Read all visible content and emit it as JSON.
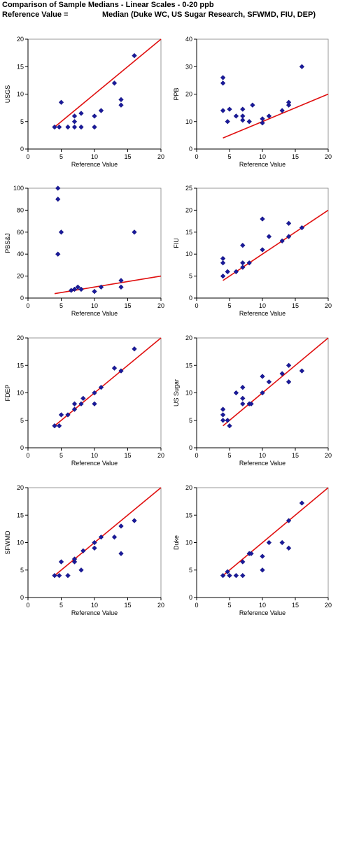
{
  "header": {
    "title": "Comparison of Sample Medians - Linear Scales - 0-20 ppb",
    "ref_label": "Reference Value =",
    "ref_value": "Median (Duke WC, US Sugar Research, SFWMD, FIU, DEP)"
  },
  "colors": {
    "points": "#1a1a9a",
    "line": "#e01010",
    "axis": "#000000"
  },
  "chart_data": [
    {
      "type": "scatter",
      "ylabel": "USGS",
      "xlabel": "Reference Value",
      "xlim": [
        0,
        20
      ],
      "ylim": [
        0,
        20
      ],
      "xticks": [
        0,
        5,
        10,
        15,
        20
      ],
      "yticks": [
        0,
        5,
        10,
        15,
        20
      ],
      "points": [
        [
          4,
          4
        ],
        [
          4.7,
          4
        ],
        [
          5,
          8.5
        ],
        [
          6,
          4
        ],
        [
          7,
          4
        ],
        [
          7,
          5
        ],
        [
          7,
          6
        ],
        [
          8,
          4
        ],
        [
          8,
          6.5
        ],
        [
          10,
          4
        ],
        [
          10,
          6
        ],
        [
          11,
          7
        ],
        [
          13,
          12
        ],
        [
          14,
          8
        ],
        [
          14,
          9
        ],
        [
          16,
          17
        ]
      ],
      "line": [
        [
          4,
          4
        ],
        [
          20,
          20
        ]
      ]
    },
    {
      "type": "scatter",
      "ylabel": "PPB",
      "xlabel": "Reference Value",
      "xlim": [
        0,
        20
      ],
      "ylim": [
        0,
        40
      ],
      "xticks": [
        0,
        5,
        10,
        15,
        20
      ],
      "yticks": [
        0,
        10,
        20,
        30,
        40
      ],
      "points": [
        [
          4,
          14
        ],
        [
          4,
          24
        ],
        [
          4,
          26
        ],
        [
          4.7,
          10
        ],
        [
          5,
          14.5
        ],
        [
          6,
          12
        ],
        [
          7,
          12
        ],
        [
          7,
          14.5
        ],
        [
          7,
          10.5
        ],
        [
          8,
          10
        ],
        [
          8.5,
          16
        ],
        [
          10,
          9.5
        ],
        [
          10,
          11
        ],
        [
          11,
          12
        ],
        [
          13,
          14
        ],
        [
          14,
          16
        ],
        [
          14,
          17
        ],
        [
          16,
          30
        ]
      ],
      "line": [
        [
          4,
          4
        ],
        [
          20,
          20
        ]
      ]
    },
    {
      "type": "scatter",
      "ylabel": "PBS&J",
      "xlabel": "Reference Value",
      "xlim": [
        0,
        20
      ],
      "ylim": [
        0,
        100
      ],
      "xticks": [
        0,
        5,
        10,
        15,
        20
      ],
      "yticks": [
        0,
        20,
        40,
        60,
        80,
        100
      ],
      "points": [
        [
          4.5,
          100
        ],
        [
          4.5,
          90
        ],
        [
          4.5,
          40
        ],
        [
          5,
          60
        ],
        [
          6.5,
          7
        ],
        [
          7,
          8
        ],
        [
          7.5,
          10
        ],
        [
          8,
          8
        ],
        [
          10,
          6
        ],
        [
          11,
          10
        ],
        [
          14,
          10
        ],
        [
          14,
          16
        ],
        [
          16,
          60
        ]
      ],
      "line": [
        [
          4,
          4
        ],
        [
          20,
          20
        ]
      ]
    },
    {
      "type": "scatter",
      "ylabel": "FIU",
      "xlabel": "Reference Value",
      "xlim": [
        0,
        20
      ],
      "ylim": [
        0,
        25
      ],
      "xticks": [
        0,
        5,
        10,
        15,
        20
      ],
      "yticks": [
        0,
        5,
        10,
        15,
        20,
        25
      ],
      "points": [
        [
          4,
          5
        ],
        [
          4,
          8
        ],
        [
          4,
          9
        ],
        [
          4.7,
          6
        ],
        [
          6,
          6
        ],
        [
          7,
          7
        ],
        [
          7,
          8
        ],
        [
          7,
          12
        ],
        [
          8,
          8
        ],
        [
          10,
          11
        ],
        [
          10,
          18
        ],
        [
          11,
          14
        ],
        [
          13,
          13
        ],
        [
          14,
          14
        ],
        [
          14,
          17
        ],
        [
          16,
          16
        ]
      ],
      "line": [
        [
          4,
          4
        ],
        [
          20,
          20
        ]
      ]
    },
    {
      "type": "scatter",
      "ylabel": "FDEP",
      "xlabel": "Reference Value",
      "xlim": [
        0,
        20
      ],
      "ylim": [
        0,
        20
      ],
      "xticks": [
        0,
        5,
        10,
        15,
        20
      ],
      "yticks": [
        0,
        5,
        10,
        15,
        20
      ],
      "points": [
        [
          4,
          4
        ],
        [
          4.7,
          4
        ],
        [
          5,
          6
        ],
        [
          6,
          6
        ],
        [
          7,
          7
        ],
        [
          7,
          8
        ],
        [
          8,
          8
        ],
        [
          8.3,
          9
        ],
        [
          10,
          8
        ],
        [
          10,
          10
        ],
        [
          11,
          11
        ],
        [
          13,
          14.5
        ],
        [
          14,
          14
        ],
        [
          16,
          18
        ]
      ],
      "line": [
        [
          4,
          4
        ],
        [
          20,
          20
        ]
      ]
    },
    {
      "type": "scatter",
      "ylabel": "US Sugar",
      "xlabel": "Reference Value",
      "xlim": [
        0,
        20
      ],
      "ylim": [
        0,
        20
      ],
      "xticks": [
        0,
        5,
        10,
        15,
        20
      ],
      "yticks": [
        0,
        5,
        10,
        15,
        20
      ],
      "points": [
        [
          4,
          5
        ],
        [
          4,
          6
        ],
        [
          4,
          7
        ],
        [
          4.7,
          5
        ],
        [
          5,
          4
        ],
        [
          6,
          10
        ],
        [
          7,
          8
        ],
        [
          7,
          9
        ],
        [
          7,
          11
        ],
        [
          8,
          8
        ],
        [
          8.3,
          8
        ],
        [
          10,
          10
        ],
        [
          10,
          13
        ],
        [
          11,
          12
        ],
        [
          13,
          13.5
        ],
        [
          14,
          12
        ],
        [
          14,
          15
        ],
        [
          16,
          14
        ]
      ],
      "line": [
        [
          4,
          4
        ],
        [
          20,
          20
        ]
      ]
    },
    {
      "type": "scatter",
      "ylabel": "SFWMD",
      "xlabel": "Reference Value",
      "xlim": [
        0,
        20
      ],
      "ylim": [
        0,
        20
      ],
      "xticks": [
        0,
        5,
        10,
        15,
        20
      ],
      "yticks": [
        0,
        5,
        10,
        15,
        20
      ],
      "points": [
        [
          4,
          4
        ],
        [
          4.7,
          4
        ],
        [
          5,
          6.5
        ],
        [
          6,
          4
        ],
        [
          7,
          6.5
        ],
        [
          7,
          7
        ],
        [
          8,
          5
        ],
        [
          8.3,
          8.5
        ],
        [
          10,
          9
        ],
        [
          10,
          10
        ],
        [
          11,
          11
        ],
        [
          13,
          11
        ],
        [
          14,
          8
        ],
        [
          14,
          13
        ],
        [
          16,
          14
        ]
      ],
      "line": [
        [
          4,
          4
        ],
        [
          20,
          20
        ]
      ]
    },
    {
      "type": "scatter",
      "ylabel": "Duke",
      "xlabel": "Reference Value",
      "xlim": [
        0,
        20
      ],
      "ylim": [
        0,
        20
      ],
      "xticks": [
        0,
        5,
        10,
        15,
        20
      ],
      "yticks": [
        0,
        5,
        10,
        15,
        20
      ],
      "points": [
        [
          4,
          4
        ],
        [
          4.7,
          4.7
        ],
        [
          5,
          4
        ],
        [
          6,
          4
        ],
        [
          7,
          4
        ],
        [
          7,
          6.5
        ],
        [
          8,
          8
        ],
        [
          8.3,
          8
        ],
        [
          10,
          5
        ],
        [
          10,
          7.5
        ],
        [
          11,
          10
        ],
        [
          13,
          10
        ],
        [
          14,
          9
        ],
        [
          14,
          14
        ],
        [
          16,
          17.2
        ]
      ],
      "line": [
        [
          4,
          4
        ],
        [
          20,
          20
        ]
      ]
    }
  ]
}
